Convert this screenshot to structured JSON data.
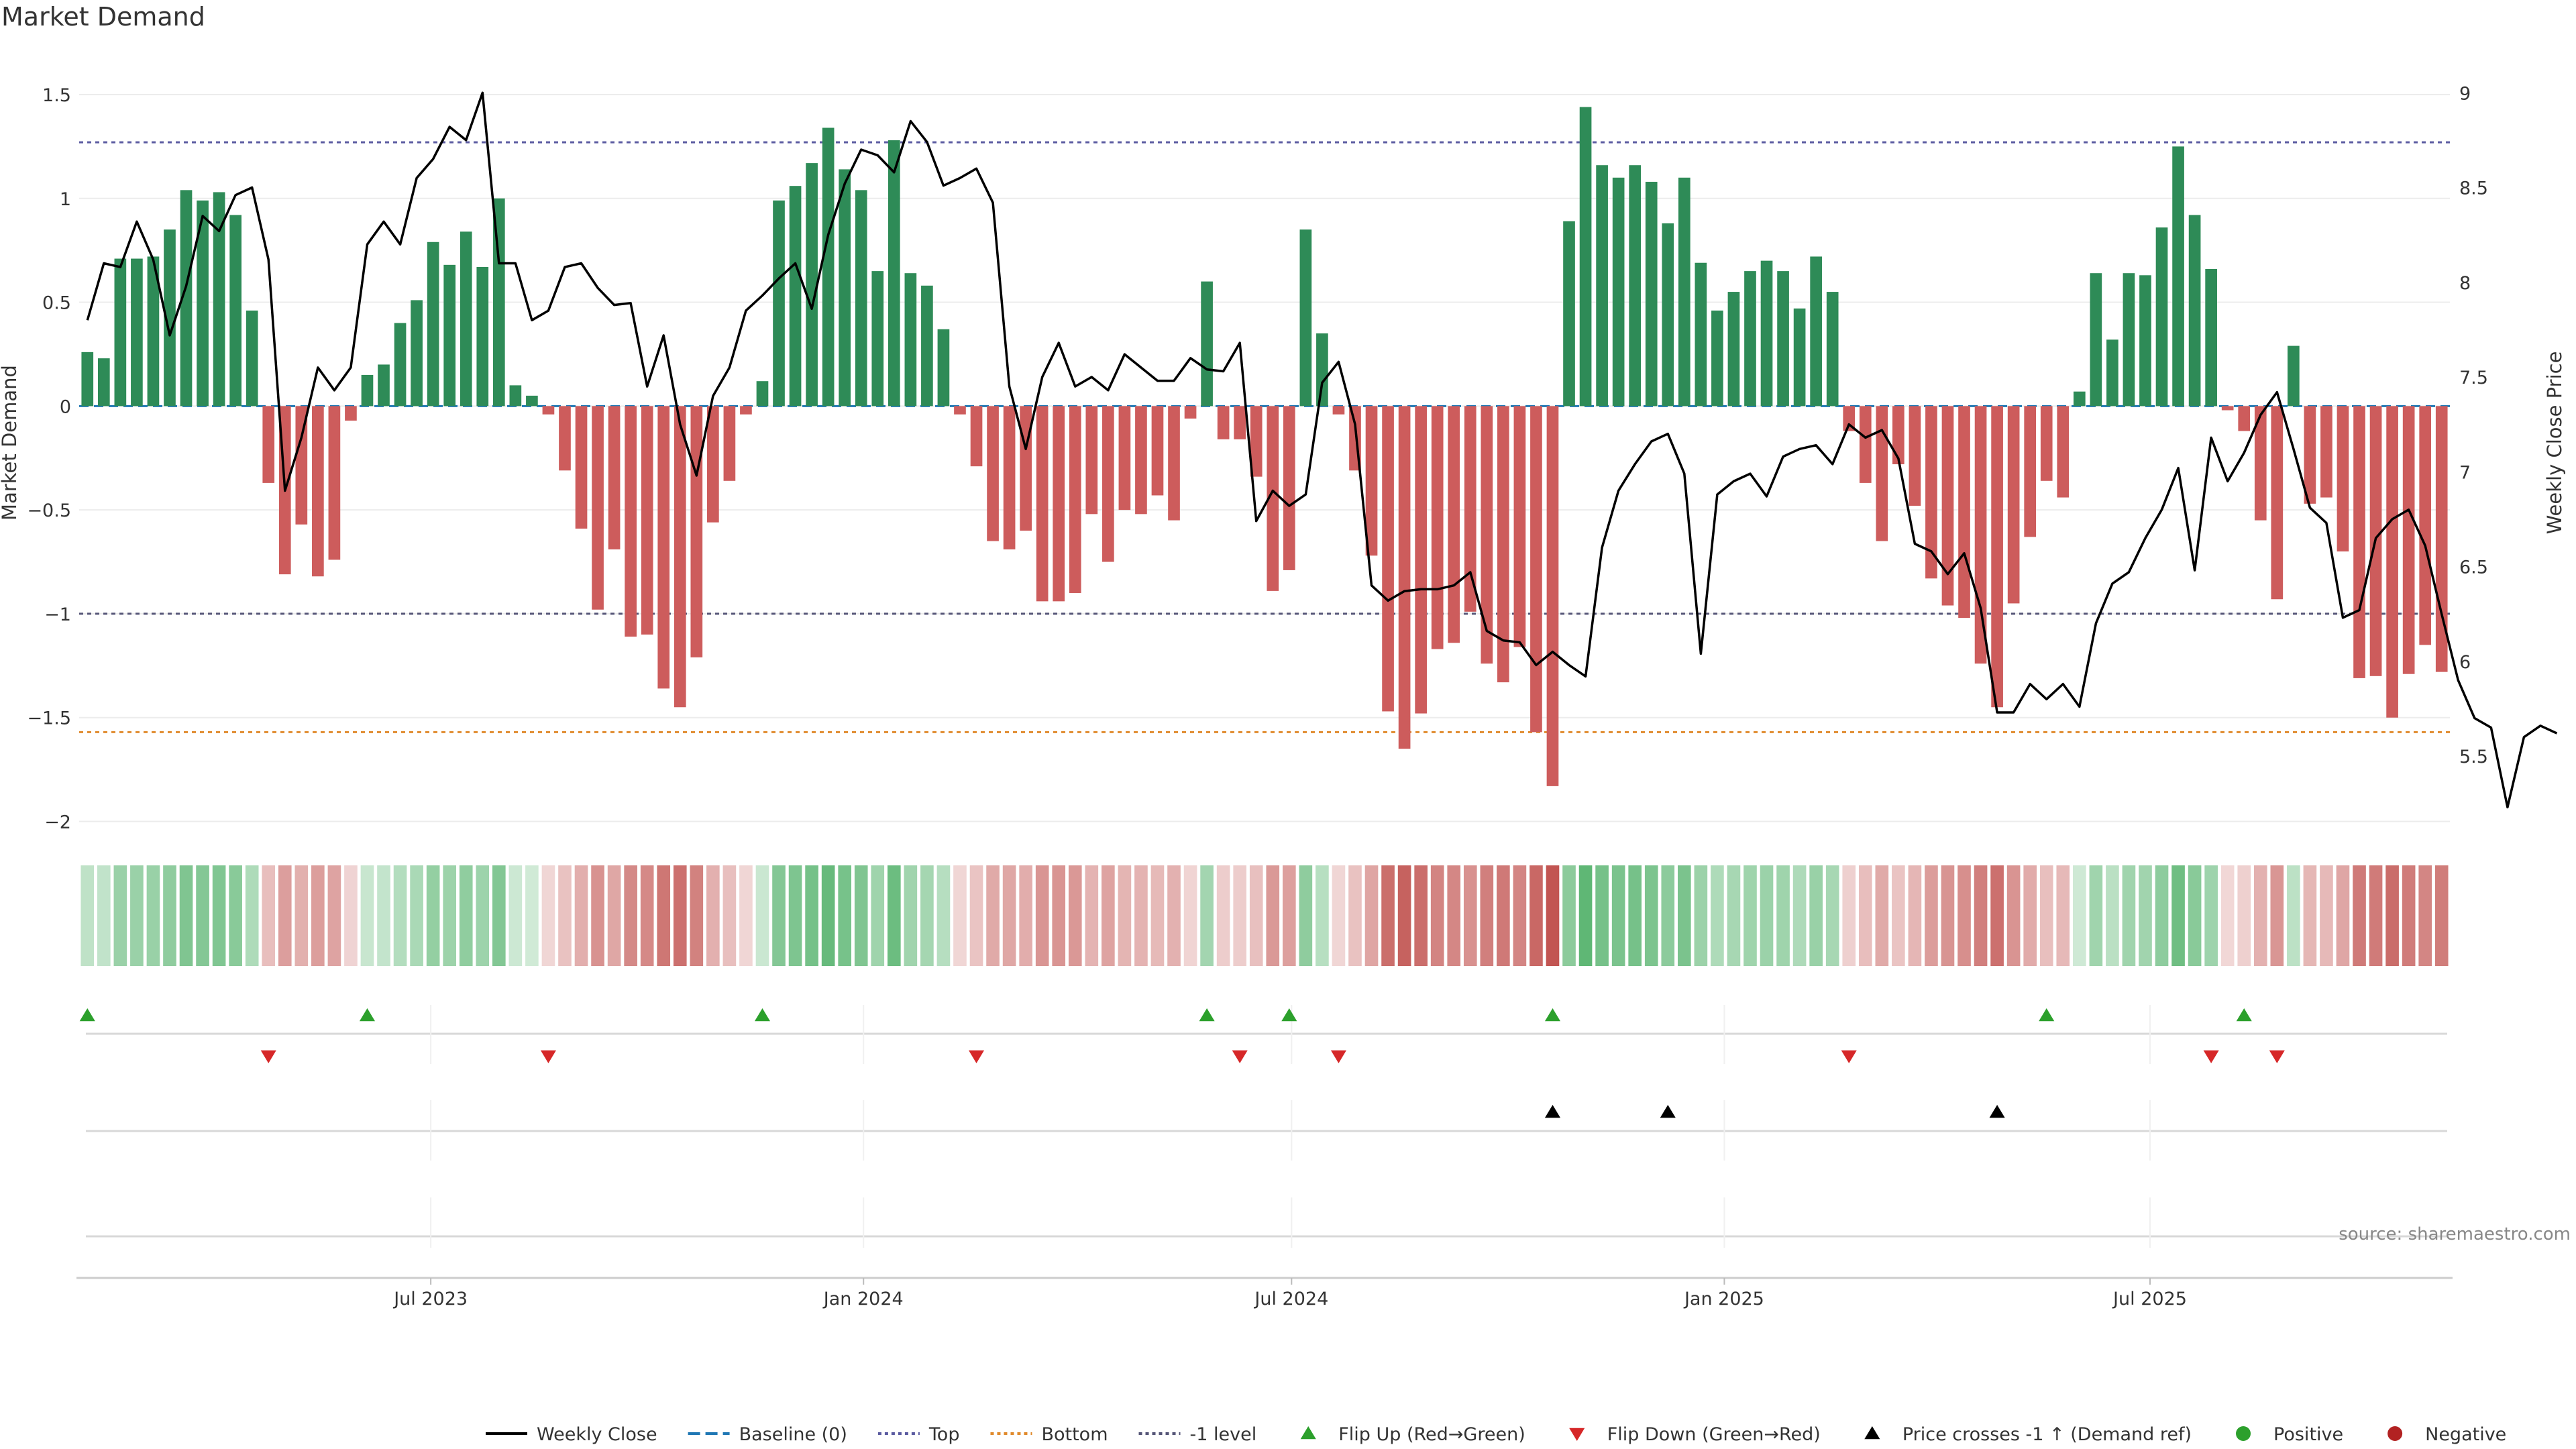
{
  "chart_data": {
    "type": "bar",
    "title": "Market Demand",
    "ylabel_left": "Market Demand",
    "ylabel_right": "Weekly Close Price",
    "ylim_left": [
      -2.05,
      1.6
    ],
    "ylim_right": [
      5.1,
      9.1
    ],
    "yticks_left": [
      1.5,
      1,
      0.5,
      0,
      -0.5,
      -1,
      -1.5,
      -2
    ],
    "ytick_labels_left": [
      "1.5",
      "1",
      "0.5",
      "0",
      "−0.5",
      "−1",
      "−1.5",
      "−2"
    ],
    "yticks_right": [
      9,
      8.5,
      8,
      7.5,
      7,
      6.5,
      6,
      5.5
    ],
    "ytick_labels_right": [
      "9",
      "8.5",
      "8",
      "7.5",
      "7",
      "6.5",
      "6",
      "5.5"
    ],
    "x_start": "2023-02-05",
    "x_tick_labels": [
      "Jul 2023",
      "Jan 2024",
      "Jul 2024",
      "Jan 2025",
      "Jul 2025"
    ],
    "x_tick_dates": [
      "2023-07-01",
      "2024-01-01",
      "2024-07-01",
      "2025-01-01",
      "2025-07-01"
    ],
    "reference_lines": {
      "top": 1.27,
      "bottom": -1.57,
      "minus_one": -1.0,
      "baseline": 0
    },
    "colors": {
      "positive": "#2e8b57",
      "negative": "#cd5c5c",
      "price": "#000000",
      "baseline": "#1f77b4",
      "top": "#5a5aa0",
      "bottom": "#e08a2c",
      "minus_one": "#555577",
      "flip_up": "#2ca02c",
      "flip_down": "#d62728"
    },
    "demand": [
      0.26,
      0.23,
      0.71,
      0.71,
      0.72,
      0.85,
      1.04,
      0.99,
      1.03,
      0.92,
      0.46,
      -0.37,
      -0.81,
      -0.57,
      -0.82,
      -0.74,
      -0.07,
      0.15,
      0.2,
      0.4,
      0.51,
      0.79,
      0.68,
      0.84,
      0.67,
      1.0,
      0.1,
      0.05,
      -0.04,
      -0.31,
      -0.59,
      -0.98,
      -0.69,
      -1.11,
      -1.1,
      -1.36,
      -1.45,
      -1.21,
      -0.56,
      -0.36,
      -0.04,
      0.12,
      0.99,
      1.06,
      1.17,
      1.34,
      1.14,
      1.04,
      0.65,
      1.28,
      0.64,
      0.58,
      0.37,
      -0.04,
      -0.29,
      -0.65,
      -0.69,
      -0.6,
      -0.94,
      -0.94,
      -0.9,
      -0.52,
      -0.75,
      -0.5,
      -0.52,
      -0.43,
      -0.55,
      -0.06,
      0.6,
      -0.16,
      -0.16,
      -0.34,
      -0.89,
      -0.79,
      0.85,
      0.35,
      -0.04,
      -0.31,
      -0.72,
      -1.47,
      -1.65,
      -1.48,
      -1.17,
      -1.14,
      -0.99,
      -1.24,
      -1.33,
      -1.16,
      -1.57,
      -1.83,
      0.89,
      1.44,
      1.16,
      1.1,
      1.16,
      1.08,
      0.88,
      1.1,
      0.69,
      0.46,
      0.55,
      0.65,
      0.7,
      0.65,
      0.47,
      0.72,
      0.55,
      -0.12,
      -0.37,
      -0.65,
      -0.28,
      -0.48,
      -0.83,
      -0.96,
      -1.02,
      -1.24,
      -1.45,
      -0.95,
      -0.63,
      -0.36,
      -0.44,
      0.07,
      0.64,
      0.32,
      0.64,
      0.63,
      0.86,
      1.25,
      0.92,
      0.66,
      -0.02,
      -0.12,
      -0.55,
      -0.93,
      0.29,
      -0.47,
      -0.44,
      -0.7,
      -1.31,
      -1.3,
      -1.5,
      -1.29,
      -1.15,
      -1.28
    ],
    "series": [
      {
        "name": "Weekly Close",
        "values": [
          7.8,
          8.1,
          8.08,
          8.32,
          8.12,
          7.72,
          7.98,
          8.35,
          8.27,
          8.46,
          8.5,
          8.12,
          6.9,
          7.18,
          7.55,
          7.43,
          7.55,
          8.2,
          8.32,
          8.2,
          8.55,
          8.65,
          8.82,
          8.75,
          9.0,
          8.1,
          8.1,
          7.8,
          7.85,
          8.08,
          8.1,
          7.97,
          7.88,
          7.89,
          7.45,
          7.72,
          7.25,
          6.98,
          7.4,
          7.55,
          7.85,
          7.93,
          8.02,
          8.1,
          7.86,
          8.25,
          8.52,
          8.7,
          8.67,
          8.58,
          8.85,
          8.74,
          8.51,
          8.55,
          8.6,
          8.42,
          7.45,
          7.12,
          7.5,
          7.68,
          7.45,
          7.5,
          7.43,
          7.62,
          7.55,
          7.48,
          7.48,
          7.6,
          7.54,
          7.53,
          7.68,
          6.74,
          6.9,
          6.82,
          6.88,
          7.47,
          7.58,
          7.25,
          6.4,
          6.32,
          6.37,
          6.38,
          6.38,
          6.4,
          6.47,
          6.16,
          6.11,
          6.1,
          5.98,
          6.05,
          5.98,
          5.92,
          6.6,
          6.9,
          7.04,
          7.16,
          7.2,
          6.99,
          6.04,
          6.88,
          6.95,
          6.99,
          6.87,
          7.08,
          7.12,
          7.14,
          7.04,
          7.25,
          7.18,
          7.22,
          7.07,
          6.62,
          6.58,
          6.46,
          6.57,
          6.28,
          5.73,
          5.73,
          5.88,
          5.8,
          5.88,
          5.76,
          6.2,
          6.41,
          6.47,
          6.65,
          6.8,
          7.02,
          6.48,
          7.18,
          6.95,
          7.1,
          7.3,
          7.42,
          7.12,
          6.81,
          6.73,
          6.23,
          6.27,
          6.65,
          6.75,
          6.8,
          6.61,
          6.25,
          5.9,
          5.7,
          5.65,
          5.23,
          5.6,
          5.66,
          5.62
        ]
      }
    ],
    "flip_up_index": [
      0,
      17,
      41,
      68,
      73,
      89,
      119,
      131
    ],
    "flip_down_index": [
      11,
      28,
      54,
      70,
      76,
      107,
      129,
      133
    ],
    "price_cross_index": [
      89,
      96,
      116
    ],
    "legend": {
      "position": "bottom-center",
      "entries": [
        {
          "label": "Weekly Close",
          "kind": "line"
        },
        {
          "label": "Baseline (0)",
          "kind": "dash"
        },
        {
          "label": "Top",
          "kind": "dot"
        },
        {
          "label": "Bottom",
          "kind": "dot"
        },
        {
          "label": "-1 level",
          "kind": "dot"
        },
        {
          "label": "Flip Up (Red→Green)",
          "kind": "tri-up"
        },
        {
          "label": "Flip Down (Green→Red)",
          "kind": "tri-down"
        },
        {
          "label": "Price crosses -1 ↑ (Demand ref)",
          "kind": "tri-black"
        },
        {
          "label": "Positive",
          "kind": "circle"
        },
        {
          "label": "Negative",
          "kind": "circle"
        }
      ]
    },
    "source": "source: sharemaestro.com"
  }
}
